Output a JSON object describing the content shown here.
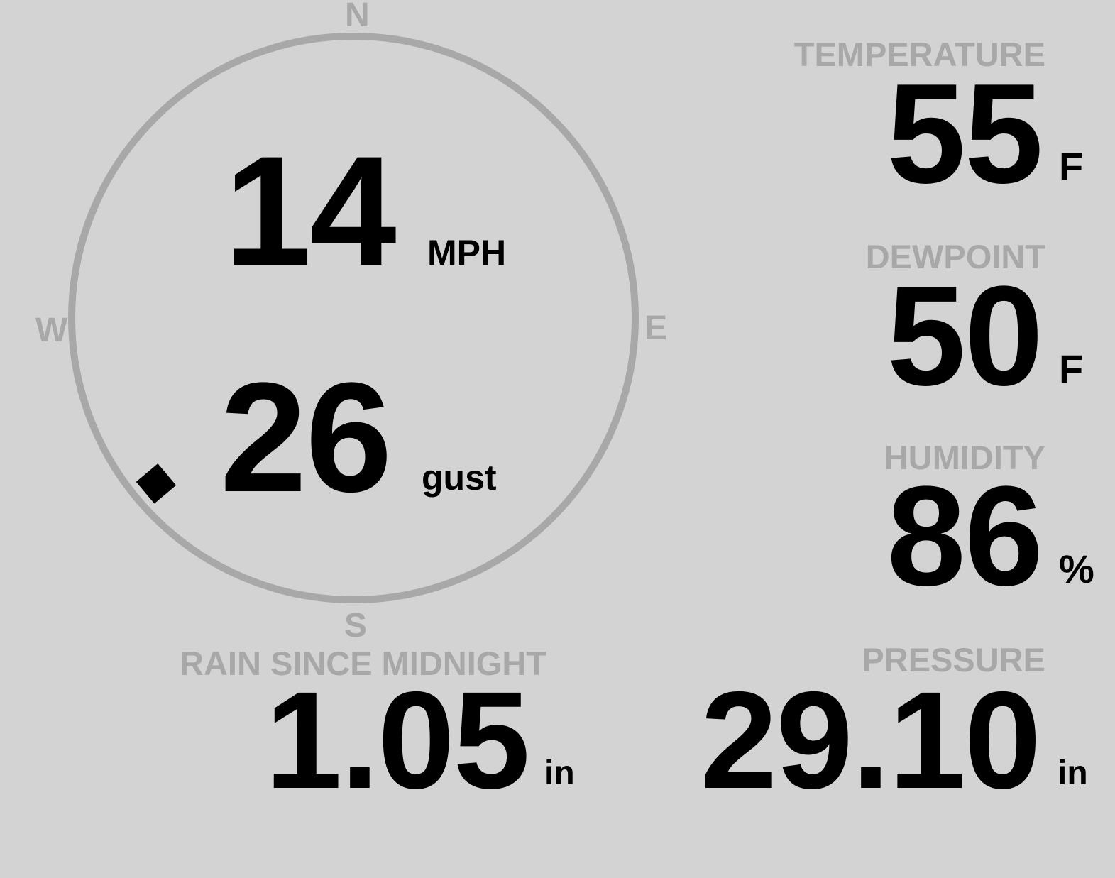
{
  "wind": {
    "speed": "14",
    "speed_unit": "MPH",
    "gust": "26",
    "gust_unit": "gust",
    "direction_degrees": 230,
    "compass": {
      "north": "N",
      "east": "E",
      "south": "S",
      "west": "W"
    }
  },
  "temperature": {
    "label": "TEMPERATURE",
    "value": "55",
    "unit": "F"
  },
  "dewpoint": {
    "label": "DEWPOINT",
    "value": "50",
    "unit": "F"
  },
  "humidity": {
    "label": "HUMIDITY",
    "value": "86",
    "unit": "%"
  },
  "rain": {
    "label": "RAIN SINCE MIDNIGHT",
    "value": "1.05",
    "unit": "in"
  },
  "pressure": {
    "label": "PRESSURE",
    "value": "29.10",
    "unit": "in"
  },
  "colors": {
    "background": "#d3d3d3",
    "muted": "#a8a8a8",
    "value": "#000000"
  }
}
